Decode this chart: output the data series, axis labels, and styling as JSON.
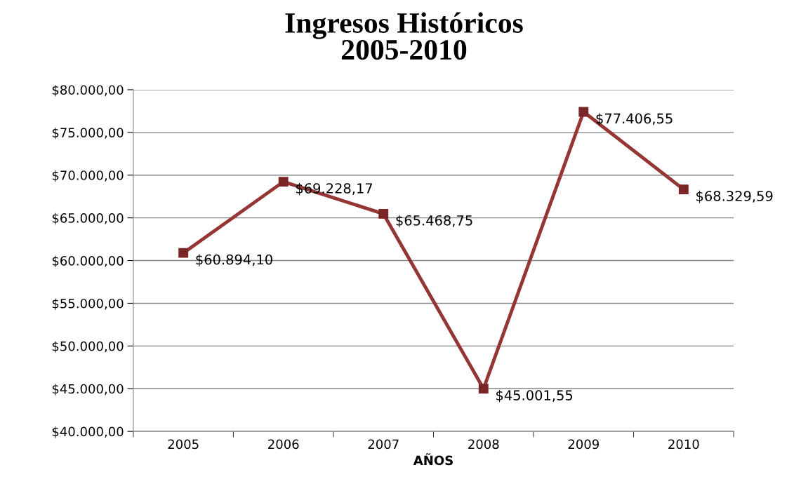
{
  "chart_data": {
    "type": "line",
    "title": "Ingresos Históricos\n2005-2010",
    "xlabel": "AÑOS",
    "categories": [
      "2005",
      "2006",
      "2007",
      "2008",
      "2009",
      "2010"
    ],
    "series": [
      {
        "color": "#943634",
        "values": [
          60894.1,
          69228.17,
          65468.75,
          45001.55,
          77406.55,
          68329.59
        ],
        "value_labels": [
          "$60.894,10",
          "$69.228,17",
          "$65.468,75",
          "$45.001,55",
          "$77.406,55",
          "$68.329,59"
        ]
      }
    ],
    "ylim": [
      40000,
      80000
    ],
    "yticks": [
      {
        "value": 40000,
        "label": "$40.000,00"
      },
      {
        "value": 45000,
        "label": "$45.000,00"
      },
      {
        "value": 50000,
        "label": "$50.000,00"
      },
      {
        "value": 55000,
        "label": "$55.000,00"
      },
      {
        "value": 60000,
        "label": "$60.000,00"
      },
      {
        "value": 65000,
        "label": "$65.000,00"
      },
      {
        "value": 70000,
        "label": "$70.000,00"
      },
      {
        "value": 75000,
        "label": "$75.000,00"
      },
      {
        "value": 80000,
        "label": "$80.000,00"
      }
    ],
    "grid": "y",
    "marker": "square",
    "line_style": "solid",
    "legend": false
  }
}
